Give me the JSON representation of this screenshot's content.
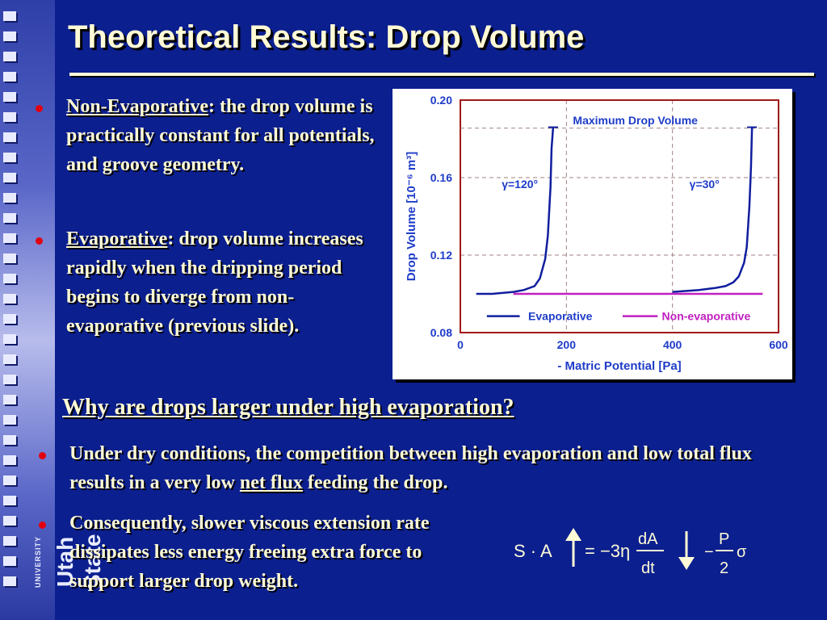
{
  "slide": {
    "title": "Theoretical Results: Drop Volume",
    "logo": {
      "big": "Utah State",
      "small": "UNIVERSITY"
    },
    "bullets_top": [
      {
        "term": "Non-Evaporative",
        "rest": ": the drop volume is practically constant for all potentials, and groove geometry."
      },
      {
        "term": "Evaporative",
        "rest": ": drop volume increases rapidly when the dripping period begins to diverge from non-evaporative (previous slide)."
      }
    ],
    "question": "Why are drops larger under high evaporation?",
    "bullets_bottom": [
      {
        "pre": "Under dry conditions, the competition between high evaporation and low total flux results in a very low ",
        "term": "net flux",
        "post": " feeding the drop."
      },
      {
        "text": "Consequently, slower viscous extension rate dissipates less energy freeing  extra force to support larger drop weight."
      }
    ],
    "equation": {
      "lhs": "S · A",
      "eq": "= −3η",
      "num1": "dA",
      "den1": "dt",
      "minus": "−",
      "num2": "P",
      "den2": "2",
      "sigma": "σ"
    }
  },
  "chart_data": {
    "type": "line",
    "title": "",
    "annotation_top": "Maximum Drop Volume",
    "xlabel": "- Matric Potential [Pa]",
    "ylabel": "Drop Volume [10⁻⁶ m³]",
    "xlim": [
      0,
      600
    ],
    "ylim": [
      0.08,
      0.2
    ],
    "xticks": [
      "0",
      "200",
      "400",
      "600"
    ],
    "yticks": [
      "0.08",
      "0.12",
      "0.16",
      "0.20"
    ],
    "curve_labels": [
      "γ=120°",
      "γ=30°"
    ],
    "legend": [
      "Evaporative",
      "Non-evaporative"
    ],
    "colors": {
      "evaporative": "#101e9e",
      "non_evaporative": "#c020c0",
      "axis_text": "#1e3cc8",
      "frame": "#a01818"
    },
    "series": [
      {
        "name": "Evaporative",
        "x": [
          30,
          60,
          100,
          120,
          140,
          150,
          160,
          165,
          170,
          172,
          175
        ],
        "y": [
          0.1,
          0.1,
          0.101,
          0.102,
          0.104,
          0.108,
          0.118,
          0.13,
          0.155,
          0.175,
          0.186
        ]
      },
      {
        "name": "Evaporative",
        "x": [
          400,
          450,
          480,
          500,
          515,
          525,
          535,
          540,
          545,
          548,
          550
        ],
        "y": [
          0.101,
          0.102,
          0.103,
          0.104,
          0.106,
          0.109,
          0.116,
          0.124,
          0.145,
          0.165,
          0.186
        ]
      },
      {
        "name": "Non-evaporative",
        "x": [
          100,
          570
        ],
        "y": [
          0.1,
          0.1
        ]
      }
    ]
  }
}
